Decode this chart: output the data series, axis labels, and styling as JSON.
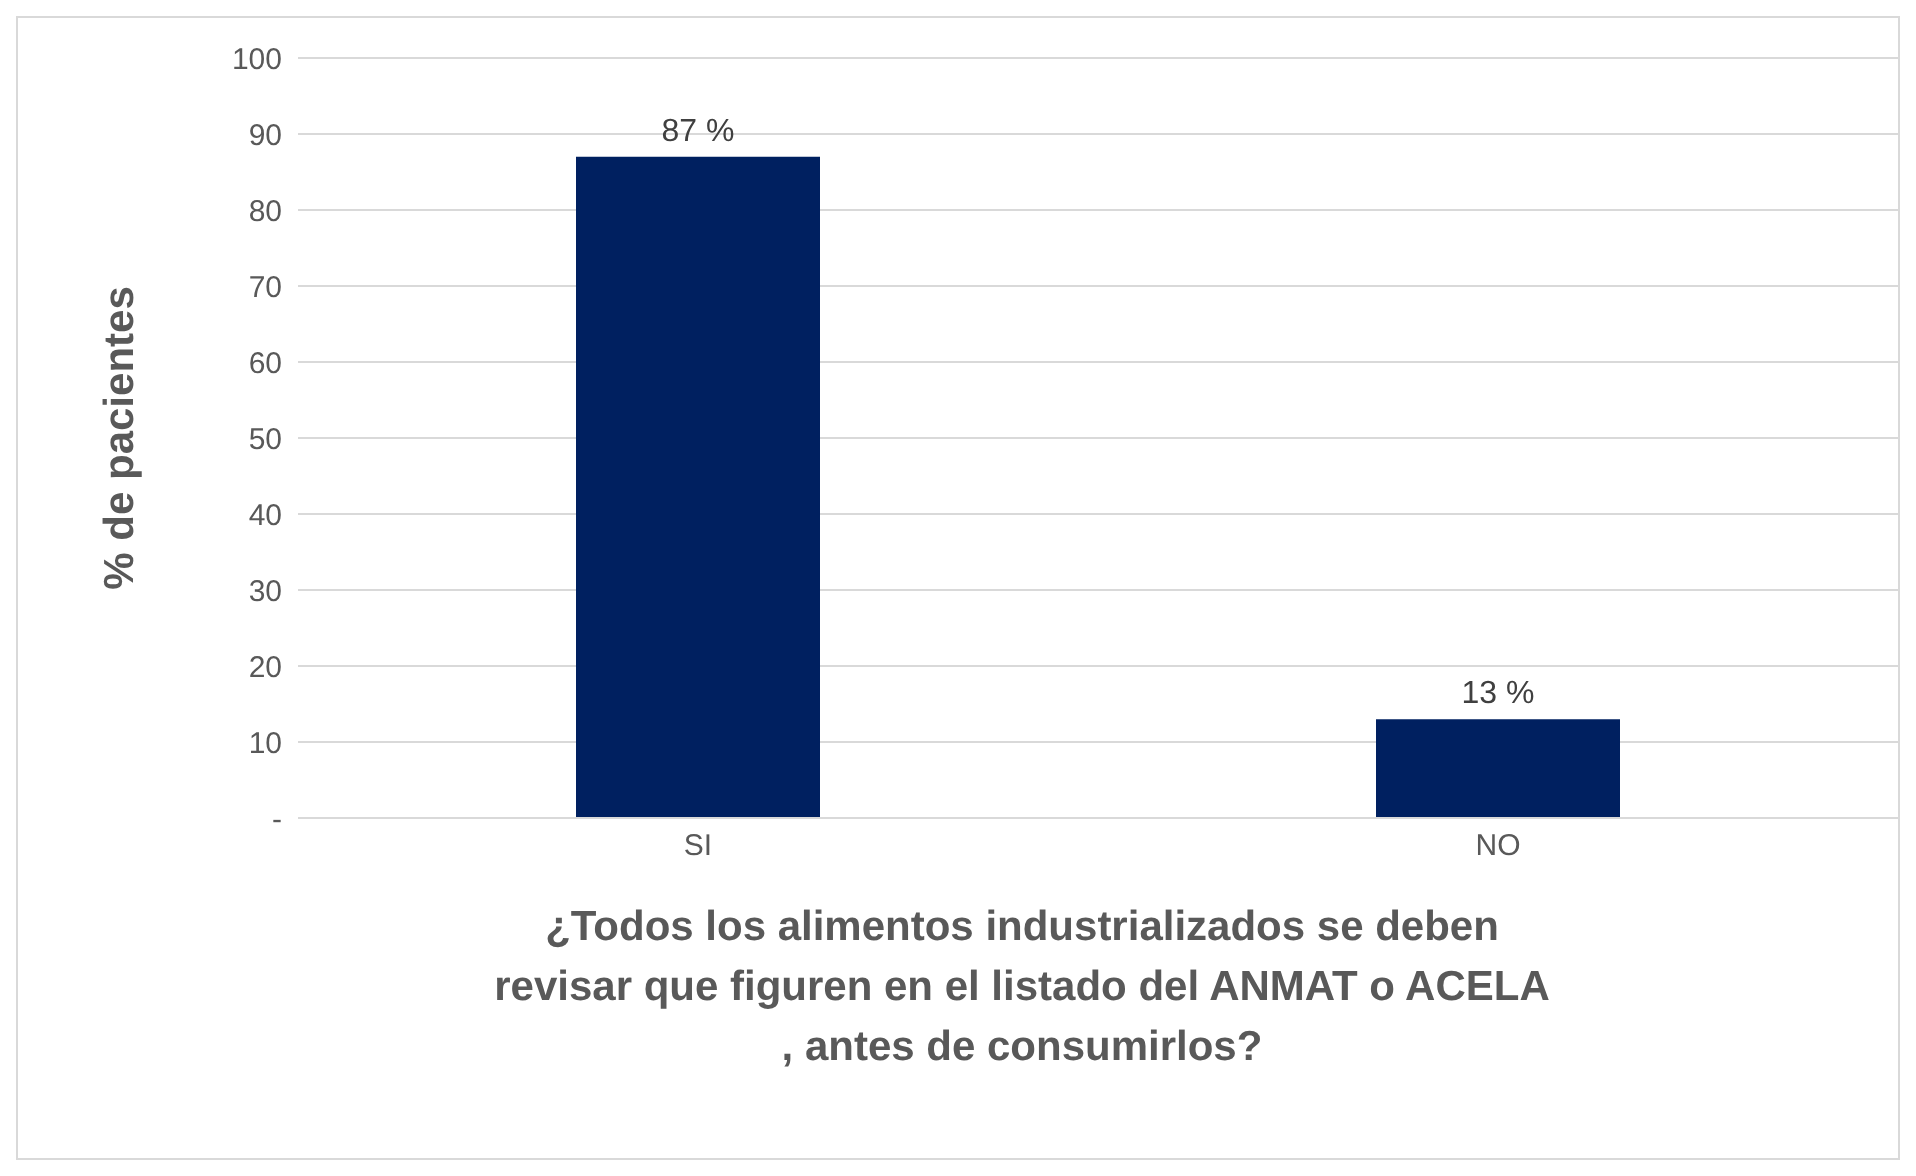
{
  "chart_data": {
    "type": "bar",
    "categories": [
      "SI",
      "NO"
    ],
    "series": [
      {
        "color": "#002060",
        "values": [
          87,
          13
        ],
        "value_labels": [
          "87 %",
          "13 %"
        ]
      }
    ],
    "ylabel": "% de pacientes",
    "xlabel": "¿Todos los alimentos industrializados se deben\nrevisar que figuren en el listado del ANMAT o ACELA\n, antes de consumirlos?",
    "ylim": [
      0,
      100
    ],
    "yticks": [
      {
        "value": 0,
        "label": "-"
      },
      10,
      20,
      30,
      40,
      50,
      60,
      70,
      80,
      90,
      100
    ],
    "grid": "y"
  }
}
